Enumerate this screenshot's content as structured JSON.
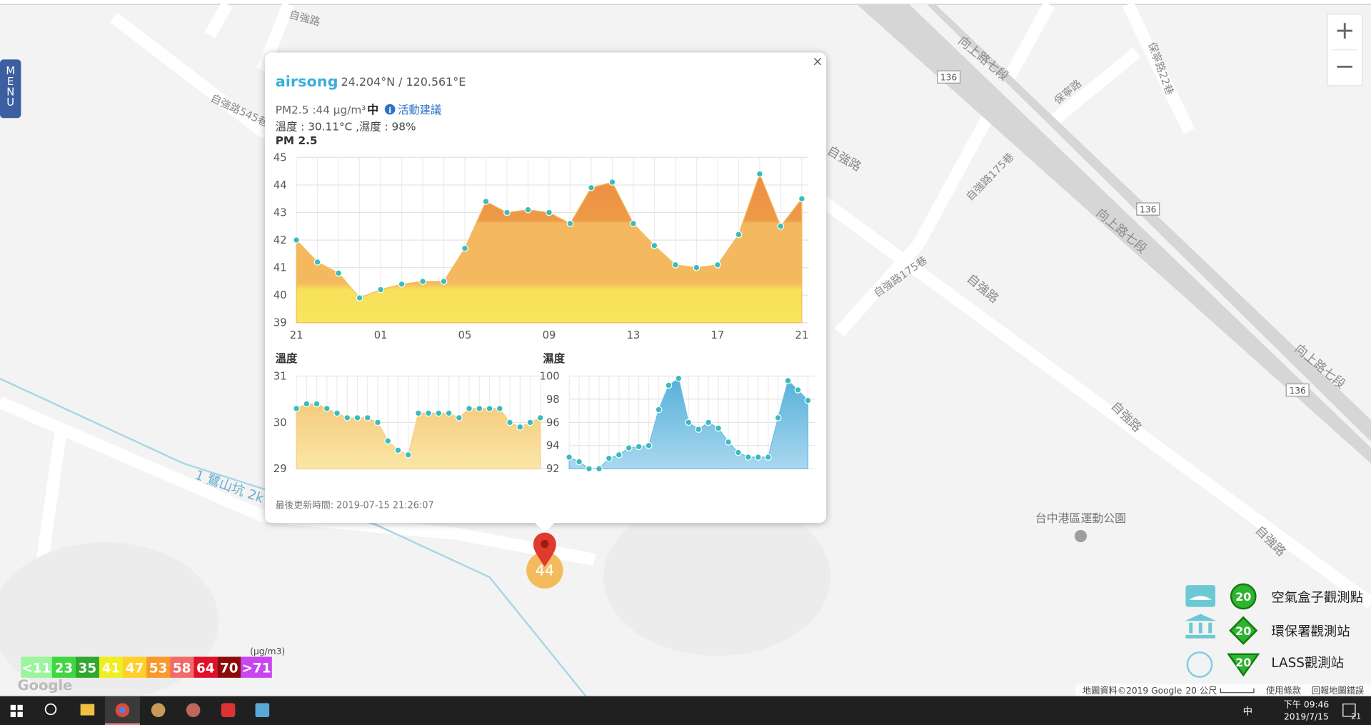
{
  "map": {
    "labels": [
      "自強路",
      "自強路545巷",
      "向上路七段",
      "136",
      "保寧路",
      "保寧路22巷",
      "自強路",
      "自強路175巷",
      "136",
      "向上路七段",
      "自強路175巷",
      "自強路",
      "向上路七段",
      "136",
      "自強路",
      "台中港區運動公園",
      "自強路",
      "1 鷺山坑 2k"
    ],
    "menu": "MENU",
    "zoom_in": "+",
    "zoom_out": "−",
    "google": "Google",
    "attribution": "地圖資料©2019 Google",
    "scale": "20 公尺",
    "terms": "使用條款",
    "report": "回報地圖錯誤",
    "marker": "44"
  },
  "popup": {
    "close": "×",
    "station": "airsong",
    "coords": "24.204°N / 120.561°E",
    "pm": "PM2.5 :44 μg/m³",
    "level": "中",
    "advice": "活動建議",
    "weather": "溫度 : 30.11°C ,濕度 : 98%",
    "updated": "最後更新時間: 2019-07-15 21:26:07"
  },
  "charts": [
    {
      "type": "area",
      "title": "PM 2.5",
      "categories": [
        "21",
        null,
        null,
        null,
        "01",
        null,
        null,
        null,
        "05",
        null,
        null,
        null,
        "09",
        null,
        null,
        null,
        "13",
        null,
        null,
        null,
        "17",
        null,
        null,
        null,
        "21"
      ],
      "values": [
        42.0,
        41.2,
        40.8,
        39.9,
        40.2,
        40.4,
        40.5,
        40.5,
        41.7,
        43.4,
        43.0,
        43.1,
        43.0,
        42.6,
        43.9,
        44.1,
        42.6,
        41.8,
        41.1,
        41.0,
        41.1,
        42.2,
        44.4,
        42.5,
        43.5
      ],
      "ylim": [
        39,
        45
      ],
      "yticks": [
        39,
        40,
        41,
        42,
        43,
        44,
        45
      ],
      "grid": true,
      "color": "#f4b95e"
    },
    {
      "type": "area",
      "title": "溫度",
      "values": [
        30.3,
        30.4,
        30.4,
        30.3,
        30.2,
        30.1,
        30.1,
        30.1,
        30.0,
        29.6,
        29.4,
        29.3,
        30.2,
        30.2,
        30.2,
        30.2,
        30.1,
        30.3,
        30.3,
        30.3,
        30.3,
        30.0,
        29.9,
        30.0,
        30.1
      ],
      "ylim": [
        29,
        31
      ],
      "yticks": [
        29,
        30,
        31
      ],
      "grid": true,
      "color": "#f5cf85"
    },
    {
      "type": "area",
      "title": "濕度",
      "values": [
        93.0,
        92.6,
        92.0,
        92.0,
        92.9,
        93.2,
        93.8,
        93.9,
        94.0,
        97.1,
        99.2,
        99.8,
        96.0,
        95.4,
        96.0,
        95.5,
        94.3,
        93.4,
        93.0,
        93.0,
        93.0,
        96.4,
        99.6,
        98.8,
        97.9
      ],
      "ylim": [
        92,
        100
      ],
      "yticks": [
        92,
        94,
        96,
        98,
        100
      ],
      "grid": true,
      "color": "#6cbde3"
    }
  ],
  "legend": {
    "unit": "(μg/m3)",
    "scale": [
      {
        "label": "<11",
        "color": "#9cf59c"
      },
      {
        "label": "23",
        "color": "#3fd63f"
      },
      {
        "label": "35",
        "color": "#2fa82f"
      },
      {
        "label": "41",
        "color": "#f0ee1e"
      },
      {
        "label": "47",
        "color": "#ffcf2a"
      },
      {
        "label": "53",
        "color": "#f79a2a"
      },
      {
        "label": "58",
        "color": "#f26a6a"
      },
      {
        "label": "64",
        "color": "#e0102a"
      },
      {
        "label": "70",
        "color": "#8e0a0a"
      },
      {
        "label": ">71",
        "color": "#c845f0"
      }
    ],
    "stations": [
      {
        "name": "空氣盒子觀測點",
        "badge": "20"
      },
      {
        "name": "環保署觀測站",
        "badge": "20"
      },
      {
        "name": "LASS觀測站",
        "badge": "20"
      }
    ]
  },
  "taskbar": {
    "ime": "中",
    "time": "下午 09:46",
    "date": "2019/7/15",
    "notifications": "21"
  }
}
